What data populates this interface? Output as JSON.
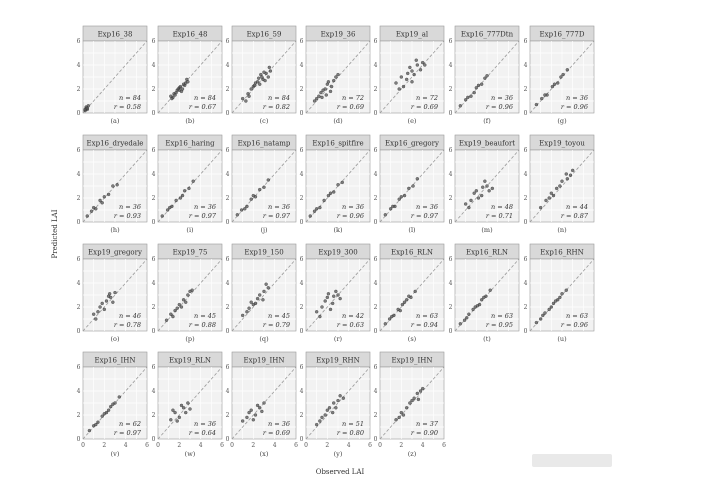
{
  "figure": {
    "xlabel": "Observed LAI",
    "ylabel": "Predicted LAI"
  },
  "chart_data": {
    "type": "scatter",
    "xlim": [
      0,
      6
    ],
    "ylim": [
      0,
      6
    ],
    "x_ticks": [
      "0",
      "2",
      "4",
      "6"
    ],
    "y_ticks": [
      "0",
      "2",
      "4",
      "6"
    ],
    "grid": true,
    "reference_line": "y = x (dashed)",
    "xlabel": "Observed LAI",
    "ylabel": "Predicted LAI",
    "panels": [
      {
        "title": "Exp16_38",
        "label": "(a)",
        "n": 84,
        "r": 0.58,
        "n_text": "n = 84",
        "r_text": "r = 0.58",
        "x": [
          0.2,
          0.3,
          0.4,
          0.5,
          0.3,
          0.2,
          0.4
        ],
        "y": [
          0.2,
          0.4,
          0.3,
          0.6,
          0.5,
          0.3,
          0.4
        ]
      },
      {
        "title": "Exp16_48",
        "label": "(b)",
        "n": 84,
        "r": 0.67,
        "n_text": "n = 84",
        "r_text": "r = 0.67",
        "x": [
          1.2,
          1.5,
          1.8,
          2.0,
          2.2,
          2.5,
          1.6,
          1.9,
          2.1,
          2.4,
          1.4,
          2.6,
          2.8,
          1.7,
          2.3,
          2.0,
          1.3,
          2.7
        ],
        "y": [
          1.4,
          1.6,
          1.9,
          2.1,
          1.8,
          2.3,
          1.5,
          2.0,
          2.2,
          2.4,
          1.3,
          2.5,
          2.6,
          1.7,
          2.0,
          1.9,
          1.2,
          2.8
        ]
      },
      {
        "title": "Exp16_59",
        "label": "(c)",
        "n": 84,
        "r": 0.82,
        "n_text": "n = 84",
        "r_text": "r = 0.82",
        "x": [
          1.0,
          1.5,
          2.0,
          2.4,
          2.8,
          3.2,
          3.5,
          1.8,
          2.6,
          3.0,
          2.2,
          1.3,
          3.4,
          2.9,
          2.5,
          3.6,
          1.6,
          2.1,
          2.7,
          3.1
        ],
        "y": [
          1.2,
          1.6,
          2.2,
          2.6,
          3.0,
          3.3,
          3.8,
          2.0,
          2.4,
          3.4,
          2.5,
          1.0,
          3.0,
          2.8,
          2.9,
          3.5,
          1.4,
          2.3,
          3.2,
          2.7
        ]
      },
      {
        "title": "Exp19_36",
        "label": "(d)",
        "n": 72,
        "r": 0.69,
        "n_text": "n = 72",
        "r_text": "r = 0.69",
        "x": [
          0.8,
          1.2,
          1.5,
          1.8,
          2.0,
          2.3,
          2.6,
          1.0,
          1.4,
          2.1,
          2.8,
          1.6,
          2.4,
          3.0,
          1.9
        ],
        "y": [
          1.0,
          1.4,
          1.3,
          2.0,
          2.4,
          1.8,
          2.7,
          1.2,
          1.7,
          2.6,
          3.0,
          1.9,
          2.2,
          3.2,
          1.5
        ]
      },
      {
        "title": "Exp19_al",
        "label": "(e)",
        "n": 72,
        "r": 0.69,
        "n_text": "n = 72",
        "r_text": "r = 0.69",
        "x": [
          1.5,
          2.0,
          2.5,
          3.0,
          3.5,
          4.0,
          2.2,
          2.8,
          3.2,
          3.8,
          1.8,
          2.6,
          3.4,
          4.2,
          3.0
        ],
        "y": [
          2.5,
          3.0,
          2.8,
          3.5,
          4.0,
          4.2,
          2.2,
          3.8,
          3.2,
          3.6,
          2.0,
          3.3,
          4.4,
          4.0,
          2.6
        ]
      },
      {
        "title": "Exp16_777Dtn",
        "label": "(f)",
        "n": 36,
        "r": 0.96,
        "n_text": "n = 36",
        "r_text": "r = 0.96",
        "x": [
          0.5,
          1.0,
          1.5,
          2.0,
          2.5,
          3.0,
          1.2,
          1.8,
          2.2,
          2.8
        ],
        "y": [
          0.6,
          1.1,
          1.4,
          2.1,
          2.4,
          3.1,
          1.3,
          1.7,
          2.3,
          2.9
        ]
      },
      {
        "title": "Exp16_777D",
        "label": "(g)",
        "n": 36,
        "r": 0.96,
        "n_text": "n = 36",
        "r_text": "r = 0.96",
        "x": [
          0.6,
          1.1,
          1.6,
          2.1,
          2.6,
          3.1,
          3.5,
          1.4,
          2.3,
          2.9
        ],
        "y": [
          0.7,
          1.2,
          1.5,
          2.2,
          2.5,
          3.2,
          3.6,
          1.5,
          2.4,
          3.0
        ]
      },
      {
        "title": "Exp16_dryedale",
        "label": "(h)",
        "n": 36,
        "r": 0.93,
        "n_text": "n = 36",
        "r_text": "r = 0.93",
        "x": [
          0.4,
          0.8,
          1.2,
          1.6,
          2.0,
          2.4,
          2.8,
          3.2,
          1.0,
          1.8
        ],
        "y": [
          0.5,
          0.9,
          1.1,
          1.8,
          2.1,
          2.3,
          3.0,
          3.1,
          1.2,
          1.6
        ]
      },
      {
        "title": "Exp16_haring",
        "label": "(i)",
        "n": 36,
        "r": 0.97,
        "n_text": "n = 36",
        "r_text": "r = 0.97",
        "x": [
          0.4,
          0.9,
          1.3,
          1.7,
          2.1,
          2.5,
          2.9,
          3.3,
          1.1,
          2.3
        ],
        "y": [
          0.5,
          1.0,
          1.3,
          1.8,
          2.0,
          2.6,
          2.8,
          3.4,
          1.2,
          2.2
        ]
      },
      {
        "title": "Exp16_natamp",
        "label": "(j)",
        "n": 36,
        "r": 0.97,
        "n_text": "n = 36",
        "r_text": "r = 0.97",
        "x": [
          0.5,
          0.9,
          1.4,
          1.8,
          2.2,
          2.6,
          3.0,
          3.4,
          1.2,
          2.0
        ],
        "y": [
          0.6,
          1.0,
          1.3,
          1.9,
          2.1,
          2.7,
          2.9,
          3.5,
          1.1,
          2.2
        ]
      },
      {
        "title": "Exp16_spitfire",
        "label": "(k)",
        "n": 36,
        "r": 0.96,
        "n_text": "n = 36",
        "r_text": "r = 0.96",
        "x": [
          0.4,
          0.8,
          1.3,
          1.7,
          2.1,
          2.6,
          3.0,
          3.4,
          1.0,
          2.3
        ],
        "y": [
          0.5,
          0.9,
          1.2,
          1.8,
          2.2,
          2.5,
          3.1,
          3.3,
          1.1,
          2.4
        ]
      },
      {
        "title": "Exp16_gregory",
        "label": "(l)",
        "n": 36,
        "r": 0.97,
        "n_text": "n = 36",
        "r_text": "r = 0.97",
        "x": [
          0.5,
          1.0,
          1.4,
          1.8,
          2.3,
          2.7,
          3.1,
          3.5,
          1.2,
          2.0
        ],
        "y": [
          0.6,
          1.1,
          1.3,
          1.9,
          2.2,
          2.8,
          3.0,
          3.6,
          1.3,
          2.1
        ]
      },
      {
        "title": "Exp19_beaufort",
        "label": "(m)",
        "n": 48,
        "r": 0.71,
        "n_text": "n = 48",
        "r_text": "r = 0.71",
        "x": [
          1.0,
          1.5,
          2.0,
          2.5,
          3.0,
          3.5,
          1.8,
          2.2,
          2.8,
          3.2,
          1.3,
          2.6
        ],
        "y": [
          1.5,
          1.8,
          2.6,
          2.2,
          3.0,
          2.8,
          2.4,
          2.0,
          3.4,
          2.6,
          1.2,
          2.9
        ]
      },
      {
        "title": "Exp19_toyou",
        "label": "(n)",
        "n": 44,
        "r": 0.87,
        "n_text": "n = 44",
        "r_text": "r = 0.87",
        "x": [
          1.0,
          1.5,
          2.0,
          2.5,
          3.0,
          3.5,
          4.0,
          1.8,
          2.8,
          3.4,
          2.2,
          3.8
        ],
        "y": [
          1.2,
          1.8,
          2.4,
          2.8,
          3.4,
          3.6,
          4.3,
          2.0,
          3.0,
          4.0,
          2.2,
          3.9
        ]
      },
      {
        "title": "Exp19_gregory",
        "label": "(o)",
        "n": 46,
        "r": 0.78,
        "n_text": "n = 46",
        "r_text": "r = 0.78",
        "x": [
          1.0,
          1.4,
          1.8,
          2.2,
          2.6,
          3.0,
          1.6,
          2.0,
          2.4,
          2.8,
          1.2,
          2.5
        ],
        "y": [
          1.4,
          1.6,
          2.3,
          2.5,
          2.8,
          3.2,
          2.0,
          1.8,
          2.9,
          2.4,
          1.0,
          3.1
        ]
      },
      {
        "title": "Exp19_75",
        "label": "(p)",
        "n": 45,
        "r": 0.88,
        "n_text": "n = 45",
        "r_text": "r = 0.88",
        "x": [
          0.8,
          1.2,
          1.6,
          2.0,
          2.4,
          2.8,
          3.2,
          1.4,
          2.2,
          3.0,
          1.8,
          2.6
        ],
        "y": [
          0.9,
          1.4,
          1.7,
          2.2,
          2.6,
          3.0,
          3.4,
          1.2,
          2.0,
          3.3,
          1.9,
          2.4
        ]
      },
      {
        "title": "Exp19_150",
        "label": "(q)",
        "n": 45,
        "r": 0.79,
        "n_text": "n = 45",
        "r_text": "r = 0.79",
        "x": [
          1.0,
          1.4,
          1.8,
          2.2,
          2.6,
          3.0,
          3.4,
          1.6,
          2.4,
          2.9,
          2.0,
          3.2
        ],
        "y": [
          1.3,
          1.6,
          2.4,
          2.3,
          3.0,
          3.3,
          3.6,
          1.9,
          2.7,
          2.6,
          2.2,
          3.9
        ]
      },
      {
        "title": "Exp19_300",
        "label": "(r)",
        "n": 42,
        "r": 0.63,
        "n_text": "n = 42",
        "r_text": "r = 0.63",
        "x": [
          1.0,
          1.5,
          2.0,
          2.5,
          3.0,
          1.8,
          2.3,
          2.8,
          1.3,
          2.6,
          3.2,
          2.1
        ],
        "y": [
          1.6,
          2.0,
          2.8,
          2.3,
          3.0,
          2.5,
          1.8,
          3.3,
          1.2,
          2.9,
          2.7,
          3.1
        ]
      },
      {
        "title": "Exp16_RLN",
        "label": "(s)",
        "n": 63,
        "r": 0.94,
        "n_text": "n = 63",
        "r_text": "r = 0.94",
        "x": [
          0.5,
          0.9,
          1.3,
          1.7,
          2.1,
          2.5,
          2.9,
          3.3,
          1.1,
          1.9,
          2.3,
          2.7
        ],
        "y": [
          0.6,
          1.0,
          1.3,
          1.8,
          2.2,
          2.6,
          2.8,
          3.3,
          1.2,
          1.7,
          2.4,
          2.9
        ]
      },
      {
        "title": "Exp16_RLN",
        "label": "(t)",
        "n": 63,
        "r": 0.95,
        "n_text": "n = 63",
        "r_text": "r = 0.95",
        "x": [
          0.5,
          0.9,
          1.3,
          1.7,
          2.1,
          2.5,
          2.9,
          3.3,
          1.1,
          1.9,
          2.3,
          2.7
        ],
        "y": [
          0.6,
          0.9,
          1.4,
          1.8,
          2.1,
          2.6,
          2.9,
          3.4,
          1.1,
          2.0,
          2.2,
          2.8
        ]
      },
      {
        "title": "Exp16_RHN",
        "label": "(u)",
        "n": 63,
        "r": 0.96,
        "n_text": "n = 63",
        "r_text": "r = 0.96",
        "x": [
          0.6,
          1.0,
          1.4,
          1.8,
          2.2,
          2.6,
          3.0,
          3.4,
          1.2,
          2.0,
          2.4,
          2.8
        ],
        "y": [
          0.7,
          1.0,
          1.5,
          1.8,
          2.3,
          2.6,
          3.1,
          3.4,
          1.3,
          2.0,
          2.5,
          2.8
        ]
      },
      {
        "title": "Exp16_IHN",
        "label": "(v)",
        "n": 62,
        "r": 0.97,
        "n_text": "n = 62",
        "r_text": "r = 0.97",
        "x": [
          0.6,
          1.0,
          1.4,
          1.8,
          2.2,
          2.6,
          3.0,
          3.4,
          1.2,
          2.0,
          2.4,
          2.8
        ],
        "y": [
          0.7,
          1.1,
          1.4,
          1.9,
          2.2,
          2.7,
          3.0,
          3.5,
          1.2,
          2.1,
          2.4,
          2.9
        ]
      },
      {
        "title": "Exp19_RLN",
        "label": "(w)",
        "n": 36,
        "r": 0.64,
        "n_text": "n = 36",
        "r_text": "r = 0.64",
        "x": [
          1.2,
          1.6,
          2.0,
          2.4,
          2.8,
          1.4,
          1.8,
          2.2,
          2.6,
          3.0
        ],
        "y": [
          1.6,
          2.2,
          1.8,
          2.6,
          3.0,
          2.4,
          1.5,
          2.8,
          2.2,
          2.5
        ]
      },
      {
        "title": "Exp19_IHN",
        "label": "(x)",
        "n": 36,
        "r": 0.69,
        "n_text": "n = 36",
        "r_text": "r = 0.69",
        "x": [
          1.0,
          1.4,
          1.8,
          2.2,
          2.6,
          3.0,
          1.6,
          2.0,
          2.4,
          2.8
        ],
        "y": [
          1.5,
          1.8,
          2.4,
          2.0,
          2.6,
          3.0,
          2.2,
          1.6,
          2.8,
          2.3
        ]
      },
      {
        "title": "Exp19_RHN",
        "label": "(y)",
        "n": 51,
        "r": 0.8,
        "n_text": "n = 51",
        "r_text": "r = 0.80",
        "x": [
          1.0,
          1.5,
          2.0,
          2.5,
          3.0,
          3.5,
          1.8,
          2.2,
          2.8,
          3.2,
          1.3,
          2.6
        ],
        "y": [
          1.2,
          1.8,
          2.4,
          2.2,
          3.2,
          3.4,
          2.0,
          2.6,
          2.6,
          3.6,
          1.5,
          3.0
        ]
      },
      {
        "title": "Exp19_IHN",
        "label": "(z)",
        "n": 37,
        "r": 0.9,
        "n_text": "n = 37",
        "r_text": "r = 0.90",
        "x": [
          1.5,
          2.0,
          2.5,
          3.0,
          3.5,
          4.0,
          2.2,
          2.8,
          3.2,
          3.8,
          1.8,
          3.6
        ],
        "y": [
          1.6,
          2.2,
          2.6,
          3.2,
          3.8,
          4.2,
          2.0,
          3.0,
          3.4,
          4.0,
          1.8,
          3.3
        ]
      }
    ]
  }
}
